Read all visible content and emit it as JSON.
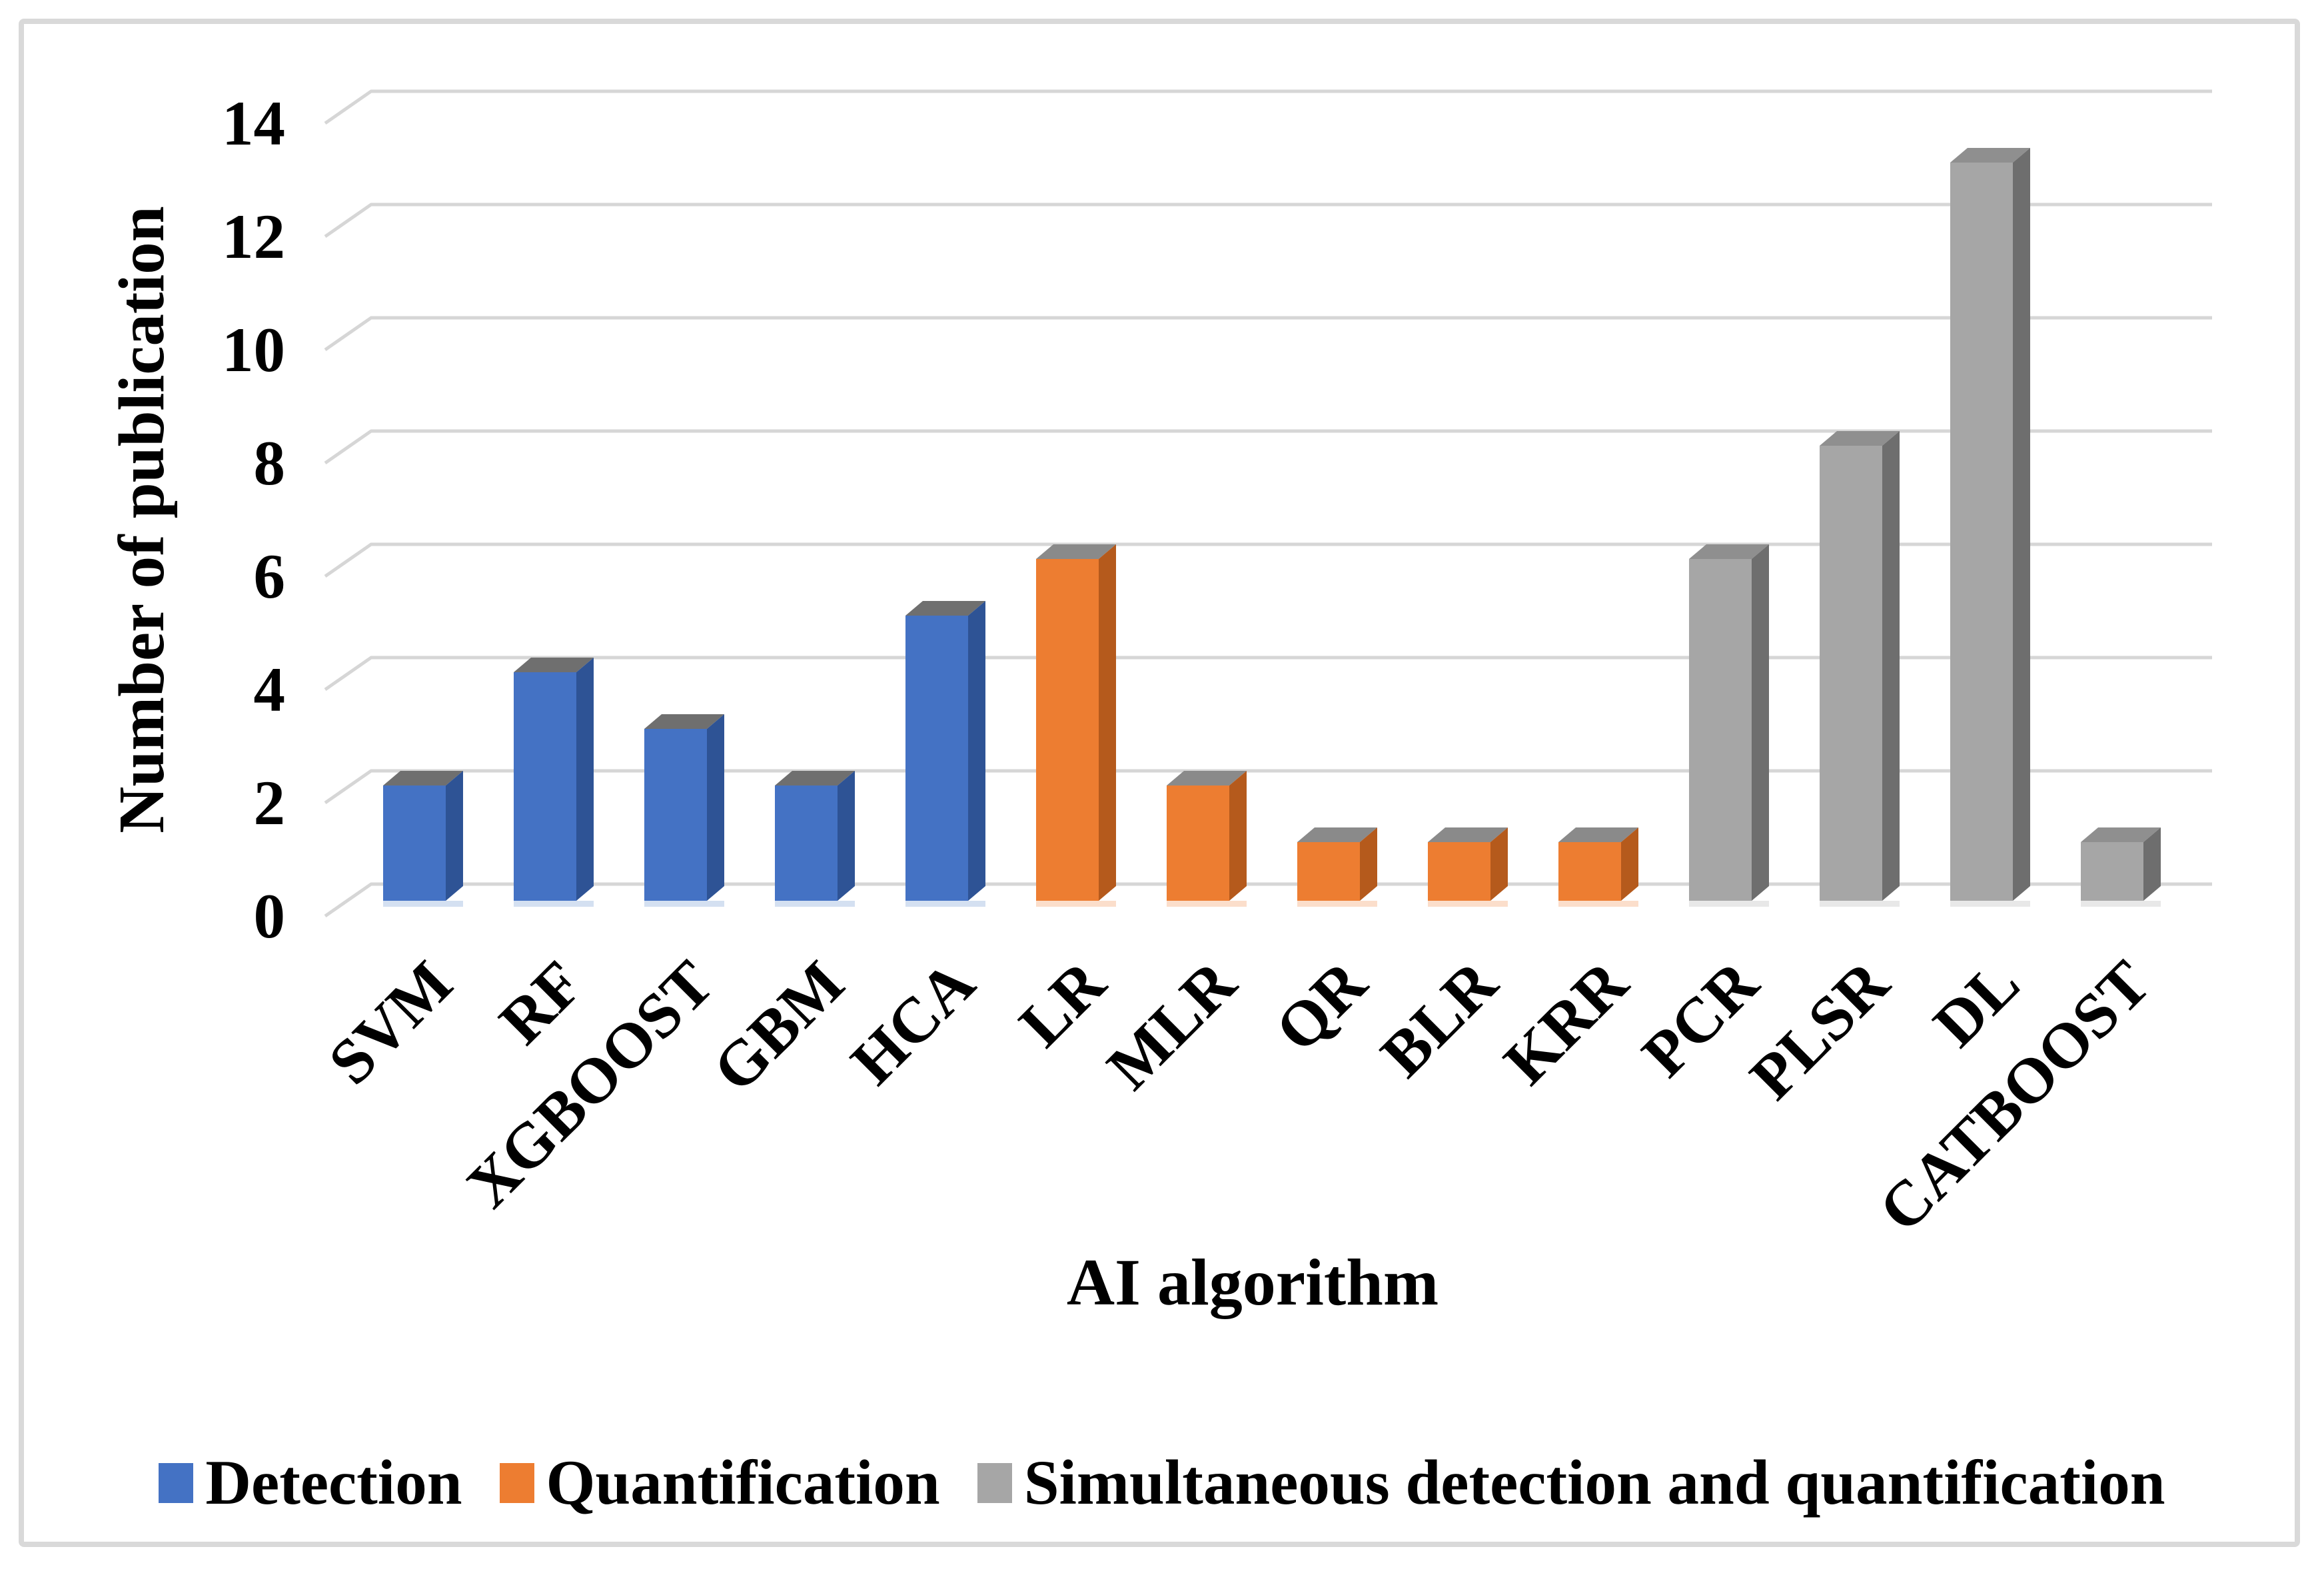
{
  "figure": {
    "background": "#FFFFFF",
    "border_color": "#D9D9D9",
    "gridline_color": "#D6D6D6"
  },
  "chart_data": {
    "type": "bar",
    "projection": "3d",
    "title": "",
    "xlabel": "AI algorithm",
    "ylabel": "Number of publication",
    "categories": [
      "SVM",
      "RF",
      "XGBOOST",
      "GBM",
      "HCA",
      "LR",
      "MLR",
      "QR",
      "BLR",
      "KRR",
      "PCR",
      "PLSR",
      "DL",
      "CATBOOST"
    ],
    "values": [
      2,
      4,
      3,
      2,
      5,
      6,
      2,
      1,
      1,
      1,
      6,
      8,
      13,
      1
    ],
    "category_series": [
      0,
      0,
      0,
      0,
      0,
      1,
      1,
      1,
      1,
      1,
      2,
      2,
      2,
      2
    ],
    "series": [
      {
        "name": "Detection",
        "front_color": "#4472C4",
        "side_color": "#2E5395",
        "top_color": "#6F6F6F",
        "floor_color": "#BDD0EA"
      },
      {
        "name": "Quantification",
        "front_color": "#ED7D31",
        "side_color": "#B55A1C",
        "top_color": "#8A8A8A",
        "floor_color": "#F9CDAF"
      },
      {
        "name": "Simultaneous detection and quantification",
        "front_color": "#A6A6A6",
        "side_color": "#6E6E6E",
        "top_color": "#8F8F8F",
        "floor_color": "#DCDCDC"
      }
    ],
    "y_ticks": [
      0,
      2,
      4,
      6,
      8,
      10,
      12,
      14
    ],
    "ylim": [
      0,
      14
    ],
    "grid": true,
    "legend_position": "bottom"
  }
}
